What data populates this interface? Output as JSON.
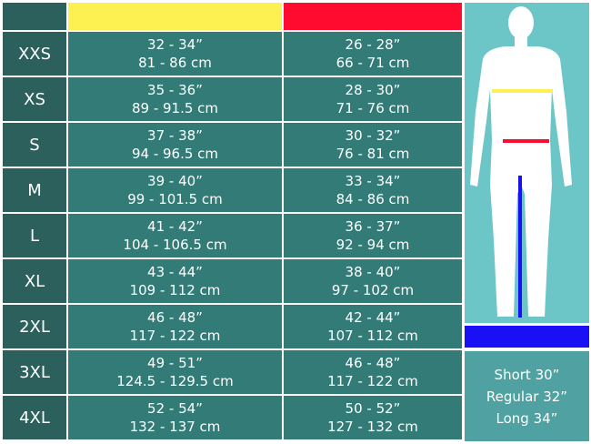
{
  "colors": {
    "chest": "#fdf151",
    "waist": "#ff0b30",
    "inseam": "#1a10f5"
  },
  "rows": [
    {
      "size": "XXS",
      "chest_in": "32 - 34”",
      "chest_cm": "81 - 86 cm",
      "waist_in": "26 - 28”",
      "waist_cm": "66 - 71 cm"
    },
    {
      "size": "XS",
      "chest_in": "35 - 36”",
      "chest_cm": "89 - 91.5 cm",
      "waist_in": "28 - 30”",
      "waist_cm": "71 - 76 cm"
    },
    {
      "size": "S",
      "chest_in": "37 - 38”",
      "chest_cm": "94 - 96.5 cm",
      "waist_in": "30 - 32”",
      "waist_cm": "76 - 81 cm"
    },
    {
      "size": "M",
      "chest_in": "39 - 40”",
      "chest_cm": "99 - 101.5 cm",
      "waist_in": "33 - 34”",
      "waist_cm": "84 - 86 cm"
    },
    {
      "size": "L",
      "chest_in": "41 - 42”",
      "chest_cm": "104 - 106.5 cm",
      "waist_in": "36 - 37”",
      "waist_cm": "92 - 94 cm"
    },
    {
      "size": "XL",
      "chest_in": "43 - 44”",
      "chest_cm": "109 - 112 cm",
      "waist_in": "38 - 40”",
      "waist_cm": "97 - 102 cm"
    },
    {
      "size": "2XL",
      "chest_in": "46 - 48”",
      "chest_cm": "117 - 122 cm",
      "waist_in": "42 - 44”",
      "waist_cm": "107 - 112 cm"
    },
    {
      "size": "3XL",
      "chest_in": "49 - 51”",
      "chest_cm": "124.5 - 129.5 cm",
      "waist_in": "46 - 48”",
      "waist_cm": "117 - 122 cm"
    },
    {
      "size": "4XL",
      "chest_in": "52 - 54”",
      "chest_cm": "132 - 137 cm",
      "waist_in": "50 - 52”",
      "waist_cm": "127 - 132 cm"
    }
  ],
  "inseam": [
    "Short 30”",
    "Regular 32”",
    "Long 34”"
  ]
}
